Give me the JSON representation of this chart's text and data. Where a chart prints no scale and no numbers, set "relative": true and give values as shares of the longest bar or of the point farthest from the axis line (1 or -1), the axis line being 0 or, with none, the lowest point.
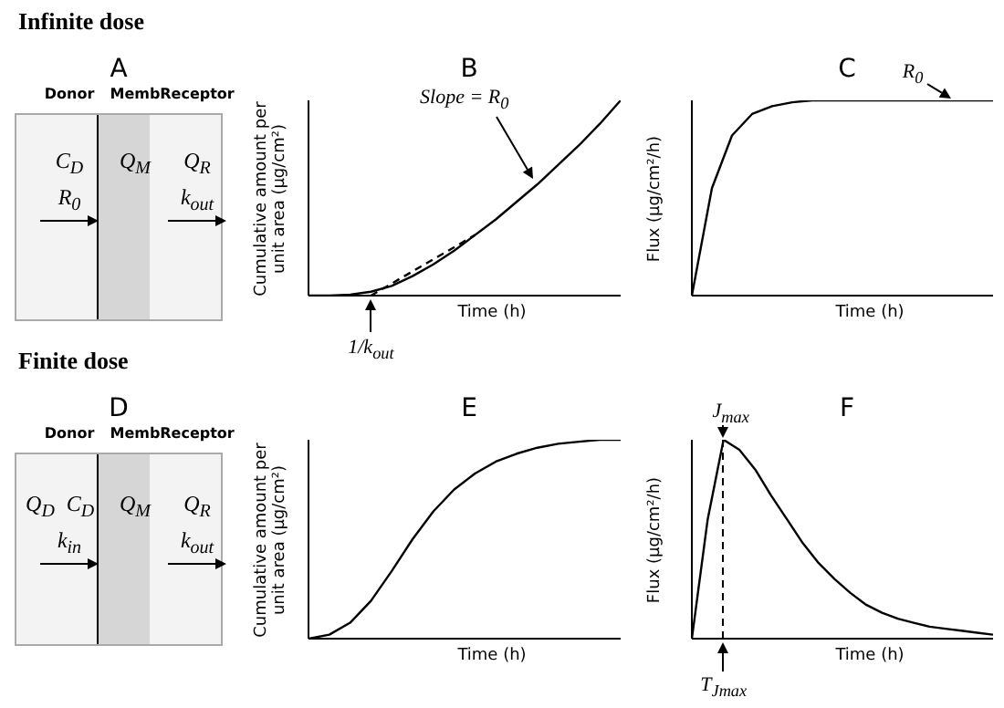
{
  "chart_data": [
    {
      "type": "other",
      "title": "Infinite dose",
      "subtitle": "A",
      "annotations": [
        "Donor",
        "Memb",
        "Receptor",
        "C$_{D}$",
        "Q$_{M}$",
        "Q$_{R}$",
        "R$_{0}$",
        "k$_{out}$"
      ]
    },
    {
      "type": "line",
      "title": "B",
      "xlabel": "Time (h)",
      "ylabel": "Cumulative amount per unit area (μg/cm²)",
      "relative": true,
      "tick_labels": false,
      "categories": [
        null,
        null,
        null,
        null,
        null,
        null,
        null,
        null,
        null,
        null,
        null,
        null,
        null,
        null,
        null,
        null
      ],
      "series": [
        {
          "color": "#000000",
          "values": [
            0,
            0,
            0.005,
            0.02,
            0.05,
            0.1,
            0.16,
            0.23,
            0.31,
            0.39,
            0.48,
            0.57,
            0.67,
            0.77,
            0.88,
            1
          ]
        },
        {
          "color": "#000000",
          "line_style": "dashed",
          "values": [
            null,
            null,
            null,
            0,
            null,
            null,
            null,
            null,
            0.31,
            null,
            null,
            null,
            null,
            null,
            null,
            null
          ]
        }
      ],
      "annotations": [
        "Slope = R$_{0}$",
        "1/k$_{out}$"
      ]
    },
    {
      "type": "line",
      "title": "C",
      "xlabel": "Time (h)",
      "ylabel": "Flux (μg/cm²/h)",
      "relative": true,
      "tick_labels": false,
      "categories": [
        null,
        null,
        null,
        null,
        null,
        null,
        null,
        null,
        null,
        null,
        null,
        null,
        null,
        null,
        null,
        null
      ],
      "series": [
        {
          "color": "#000000",
          "values": [
            0,
            0.55,
            0.82,
            0.93,
            0.97,
            0.99,
            1,
            1,
            1,
            1,
            1,
            1,
            1,
            1,
            1,
            1
          ]
        }
      ],
      "annotations": [
        "R$_{0}$"
      ]
    },
    {
      "type": "other",
      "title": "Finite dose",
      "subtitle": "D",
      "annotations": [
        "Donor",
        "Memb",
        "Receptor",
        "Q$_{D}$",
        "C$_{D}$",
        "Q$_{M}$",
        "Q$_{R}$",
        "k$_{in}$",
        "k$_{out}$"
      ]
    },
    {
      "type": "line",
      "title": "E",
      "xlabel": "Time (h)",
      "ylabel": "Cumulative amount per unit area (μg/cm²)",
      "relative": true,
      "tick_labels": false,
      "categories": [
        null,
        null,
        null,
        null,
        null,
        null,
        null,
        null,
        null,
        null,
        null,
        null,
        null,
        null,
        null,
        null
      ],
      "series": [
        {
          "color": "#000000",
          "values": [
            0,
            0.02,
            0.08,
            0.19,
            0.34,
            0.5,
            0.64,
            0.75,
            0.83,
            0.89,
            0.93,
            0.96,
            0.98,
            0.99,
            1,
            1
          ]
        }
      ]
    },
    {
      "type": "line",
      "title": "F",
      "xlabel": "Time (h)",
      "ylabel": "Flux (μg/cm²/h)",
      "relative": true,
      "tick_labels": false,
      "categories": [
        null,
        null,
        null,
        null,
        null,
        null,
        null,
        null,
        null,
        null,
        null,
        null,
        null,
        null,
        null,
        null,
        null,
        null,
        null,
        null
      ],
      "series": [
        {
          "color": "#000000",
          "values": [
            0,
            0.6,
            1,
            0.95,
            0.85,
            0.72,
            0.6,
            0.48,
            0.38,
            0.3,
            0.23,
            0.17,
            0.13,
            0.1,
            0.08,
            0.06,
            0.05,
            0.04,
            0.03,
            0.02
          ]
        }
      ],
      "annotations": [
        "J$_{max}$",
        "T$_{Jmax}$"
      ]
    }
  ]
}
